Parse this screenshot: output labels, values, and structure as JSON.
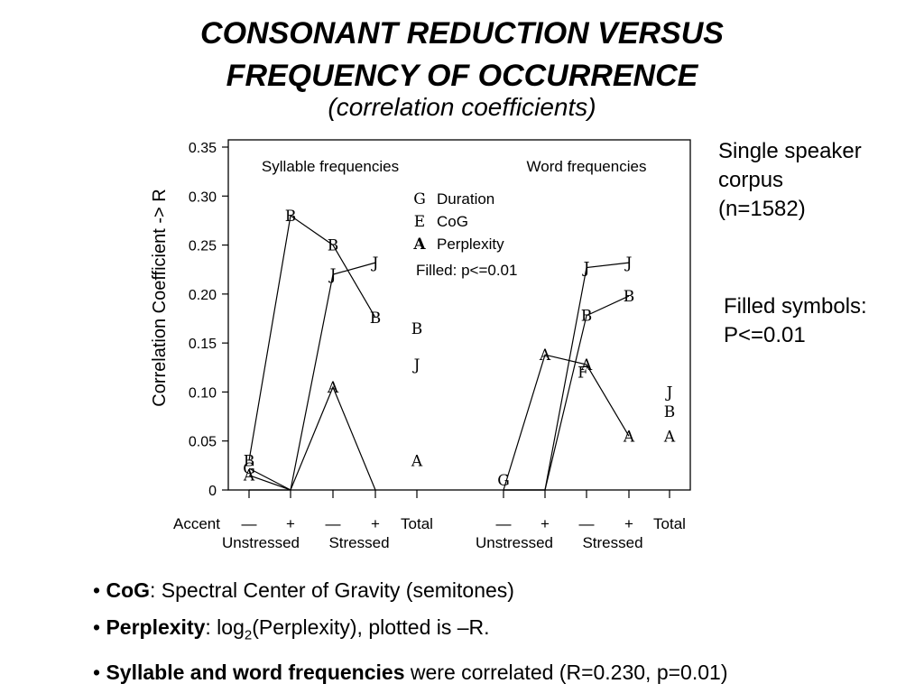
{
  "title_line1": "CONSONANT REDUCTION VERSUS",
  "title_line2": "FREQUENCY OF OCCURRENCE",
  "subtitle": "(correlation coefficients)",
  "side_note1": [
    "Single speaker",
    "corpus",
    "(n=1582)"
  ],
  "side_note2": [
    "Filled symbols:",
    "P<=0.01"
  ],
  "bullets": {
    "b1_bold": "CoG",
    "b1_rest": ": Spectral Center of Gravity (semitones)",
    "b2_bold": "Perplexity",
    "b2_rest_a": ": log",
    "b2_sub": "2",
    "b2_rest_b": "(Perplexity), plotted is –R.",
    "b3_bold": "Syllable and word frequencies",
    "b3_rest": " were correlated (R=0.230, p=0.01)"
  },
  "chart_data": {
    "type": "line",
    "ylabel": "Correlation Coefficient -> R",
    "ylim": [
      0,
      0.35
    ],
    "yticks": [
      "0",
      "0.05",
      "0.10",
      "0.15",
      "0.20",
      "0.25",
      "0.30",
      "0.35"
    ],
    "panel_labels": [
      "Syllable frequencies",
      "Word frequencies"
    ],
    "accent_label": "Accent",
    "x_categories": [
      "—",
      "+",
      "—",
      "+",
      "Total",
      "—",
      "+",
      "—",
      "+",
      "Total"
    ],
    "group_labels": [
      "Unstressed",
      "Stressed",
      "Unstressed",
      "Stressed"
    ],
    "legend": {
      "items": [
        {
          "symbol": "G",
          "label": "Duration"
        },
        {
          "symbol": "E",
          "label": "CoG"
        },
        {
          "symbol": "A",
          "label": "Perplexity"
        }
      ],
      "note": "Filled: p<=0.01"
    },
    "series": [
      {
        "symbol": "B",
        "panel": "syllable",
        "values": [
          0.03,
          0.28,
          0.25,
          0.176
        ]
      },
      {
        "symbol": "J",
        "panel": "syllable",
        "values": [
          0.0,
          0.0,
          0.22,
          0.232
        ]
      },
      {
        "symbol": "A",
        "panel": "syllable",
        "values": [
          0.015,
          0.0,
          0.105,
          0.0
        ]
      },
      {
        "symbol": "G",
        "panel": "syllable",
        "values": [
          0.022,
          0.0
        ]
      },
      {
        "symbol": "B",
        "panel": "word",
        "values": [
          0.0,
          0.0,
          0.178,
          0.198
        ]
      },
      {
        "symbol": "J",
        "panel": "word",
        "values": [
          0.0,
          0.0,
          0.227,
          0.232
        ]
      },
      {
        "symbol": "A",
        "panel": "word",
        "values": [
          0.0,
          0.138,
          0.128,
          0.055
        ]
      },
      {
        "symbol": "F",
        "panel": "word",
        "values": [
          0.12
        ]
      },
      {
        "symbol": "G",
        "panel": "word",
        "values": [
          0.01
        ]
      }
    ],
    "totals": {
      "syllable": [
        {
          "symbol": "B",
          "value": 0.165
        },
        {
          "symbol": "J",
          "value": 0.128
        },
        {
          "symbol": "A",
          "value": 0.03
        }
      ],
      "word": [
        {
          "symbol": "J",
          "value": 0.1
        },
        {
          "symbol": "B",
          "value": 0.08
        },
        {
          "symbol": "A",
          "value": 0.055
        }
      ]
    }
  }
}
